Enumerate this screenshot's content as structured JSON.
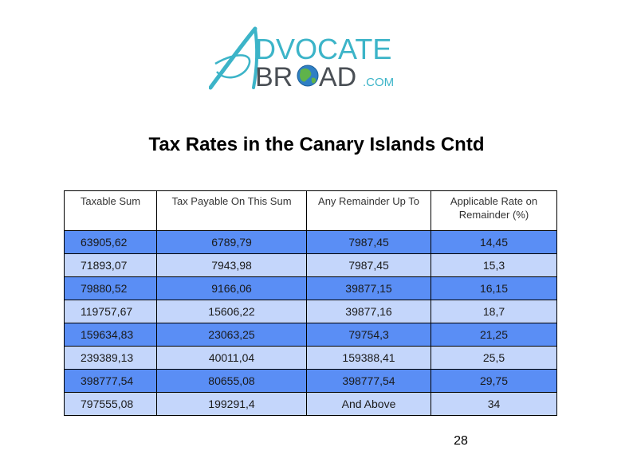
{
  "logo": {
    "line1": "DVOCATE",
    "line2_left": "BR",
    "line2_right": "AD",
    "line2_suffix": ".COM",
    "brand_color": "#3cb4c8",
    "text_color": "#4a4f55"
  },
  "title": "Tax Rates in the Canary Islands Cntd",
  "table": {
    "headers": [
      "Taxable Sum",
      "Tax Payable On This Sum",
      "Any Remainder Up To",
      "Applicable Rate on Remainder (%)"
    ],
    "rows": [
      [
        "63905,62",
        "6789,79",
        "7987,45",
        "14,45"
      ],
      [
        "71893,07",
        "7943,98",
        "7987,45",
        "15,3"
      ],
      [
        "79880,52",
        "9166,06",
        "39877,15",
        "16,15"
      ],
      [
        "119757,67",
        "15606,22",
        "39877,16",
        "18,7"
      ],
      [
        "159634,83",
        "23063,25",
        "79754,3",
        "21,25"
      ],
      [
        "239389,13",
        "40011,04",
        "159388,41",
        "25,5"
      ],
      [
        "398777,54",
        "80655,08",
        "398777,54",
        "29,75"
      ],
      [
        "797555,08",
        "199291,4",
        "And Above",
        "34"
      ]
    ],
    "colors": {
      "dark": "#5a8ef5",
      "light": "#c4d6fb"
    }
  },
  "page_number": "28"
}
